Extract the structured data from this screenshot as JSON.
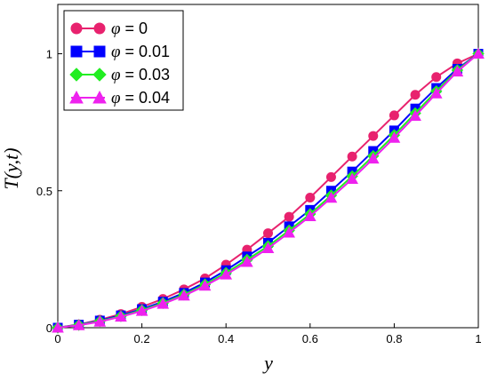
{
  "chart_data": {
    "type": "line",
    "title": "",
    "xlabel": "y",
    "ylabel": "T(y,t)",
    "xlim": [
      0,
      1
    ],
    "ylim": [
      0,
      1.18
    ],
    "xticks": [
      0,
      0.2,
      0.4,
      0.6,
      0.8,
      1
    ],
    "xtick_labels": [
      "0",
      "0.2",
      "0.4",
      "0.6",
      "0.8",
      "1"
    ],
    "yticks": [
      0,
      0.5,
      1
    ],
    "ytick_labels": [
      "0",
      "0.5",
      "1"
    ],
    "grid": false,
    "legend_position": "top-left",
    "x": [
      0,
      0.05,
      0.1,
      0.15,
      0.2,
      0.25,
      0.3,
      0.35,
      0.4,
      0.45,
      0.5,
      0.55,
      0.6,
      0.65,
      0.7,
      0.75,
      0.8,
      0.85,
      0.9,
      0.95,
      1.0
    ],
    "series": [
      {
        "symbol": "φ",
        "eq": " = 0",
        "color": "#e8226e",
        "marker": "circle",
        "values": [
          0.0,
          0.012,
          0.029,
          0.05,
          0.076,
          0.105,
          0.14,
          0.18,
          0.23,
          0.285,
          0.345,
          0.405,
          0.475,
          0.55,
          0.625,
          0.7,
          0.775,
          0.85,
          0.915,
          0.965,
          1.0
        ]
      },
      {
        "symbol": "φ",
        "eq": " = 0.01",
        "color": "#0000ff",
        "marker": "square",
        "values": [
          0.0,
          0.011,
          0.026,
          0.045,
          0.068,
          0.095,
          0.127,
          0.165,
          0.21,
          0.26,
          0.31,
          0.37,
          0.43,
          0.5,
          0.57,
          0.645,
          0.72,
          0.8,
          0.875,
          0.945,
          1.0
        ]
      },
      {
        "symbol": "φ",
        "eq": " = 0.03",
        "color": "#22ee22",
        "marker": "diamond",
        "values": [
          0.0,
          0.01,
          0.024,
          0.042,
          0.064,
          0.09,
          0.121,
          0.158,
          0.2,
          0.248,
          0.298,
          0.355,
          0.415,
          0.483,
          0.553,
          0.627,
          0.703,
          0.783,
          0.863,
          0.94,
          1.0
        ]
      },
      {
        "symbol": "φ",
        "eq": " = 0.04",
        "color": "#ee22ee",
        "marker": "triangle",
        "values": [
          0.0,
          0.009,
          0.022,
          0.04,
          0.061,
          0.087,
          0.117,
          0.153,
          0.194,
          0.24,
          0.29,
          0.347,
          0.407,
          0.474,
          0.543,
          0.617,
          0.693,
          0.773,
          0.855,
          0.935,
          1.0
        ]
      }
    ]
  }
}
